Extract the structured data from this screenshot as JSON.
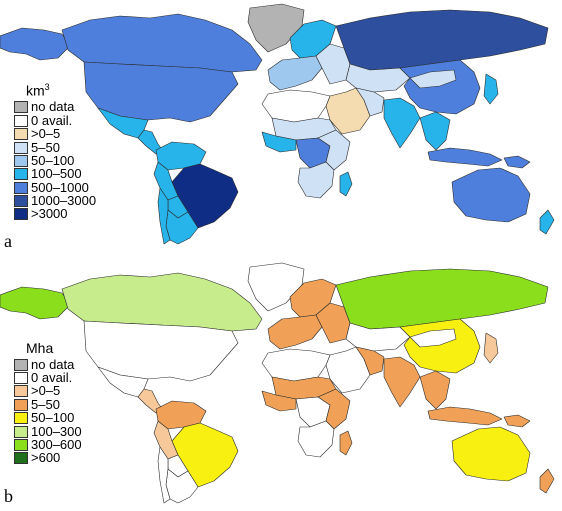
{
  "panel_a": {
    "label": "a",
    "legend": {
      "title": "km",
      "title_sup": "3",
      "items": [
        {
          "label": "no data",
          "color": "#b3b3b3"
        },
        {
          "label": "0 avail.",
          "color": "#ffffff"
        },
        {
          "label": ">0–5",
          "color": "#f4dcb0"
        },
        {
          "label": "5–50",
          "color": "#cfe1f5"
        },
        {
          "label": "50–100",
          "color": "#9ec8ee"
        },
        {
          "label": "100–500",
          "color": "#27b4ea"
        },
        {
          "label": "500–1000",
          "color": "#4f7fdc"
        },
        {
          "label": "1000–3000",
          "color": "#2d4f9e"
        },
        {
          "label": ">3000",
          "color": "#102d86"
        }
      ]
    },
    "regions": {
      "alaska": 6,
      "canada": 6,
      "usa": 6,
      "greenland": 0,
      "mexico": 5,
      "central_america": 5,
      "colombia_venezuela": 5,
      "brazil": 8,
      "peru": 5,
      "bolivia": 5,
      "argentina": 5,
      "chile": 5,
      "scandinavia": 5,
      "west_europe": 4,
      "east_europe": 3,
      "russia": 7,
      "kazakhstan": 3,
      "middle_east": 2,
      "iran": 3,
      "north_africa": 1,
      "sahel": 3,
      "west_africa": 5,
      "congo": 6,
      "east_africa": 3,
      "southern_africa": 3,
      "madagascar": 5,
      "india": 5,
      "china": 6,
      "mongolia": 3,
      "se_asia": 5,
      "indonesia": 6,
      "japan": 5,
      "australia": 6,
      "new_zealand": 5,
      "png": 6
    }
  },
  "panel_b": {
    "label": "b",
    "legend": {
      "title": "Mha",
      "items": [
        {
          "label": "no data",
          "color": "#b3b3b3"
        },
        {
          "label": "0 avail.",
          "color": "#ffffff"
        },
        {
          "label": ">0–5",
          "color": "#f7c99a"
        },
        {
          "label": "5–50",
          "color": "#f0a157"
        },
        {
          "label": "50–100",
          "color": "#f8f010"
        },
        {
          "label": "100–300",
          "color": "#c6ec8c"
        },
        {
          "label": "300–600",
          "color": "#8ade1c"
        },
        {
          "label": ">600",
          "color": "#1f6f1c"
        }
      ]
    },
    "regions": {
      "alaska": 6,
      "canada": 5,
      "usa": 1,
      "greenland": 1,
      "mexico": 1,
      "central_america": 2,
      "colombia_venezuela": 3,
      "brazil": 4,
      "peru": 2,
      "bolivia": 1,
      "argentina": 1,
      "chile": 1,
      "scandinavia": 3,
      "west_europe": 3,
      "east_europe": 3,
      "russia": 6,
      "kazakhstan": 1,
      "middle_east": 1,
      "iran": 3,
      "north_africa": 1,
      "sahel": 3,
      "west_africa": 3,
      "congo": 1,
      "east_africa": 3,
      "southern_africa": 1,
      "madagascar": 3,
      "india": 3,
      "china": 4,
      "mongolia": 1,
      "se_asia": 3,
      "indonesia": 3,
      "japan": 2,
      "australia": 4,
      "new_zealand": 3,
      "png": 3
    }
  }
}
